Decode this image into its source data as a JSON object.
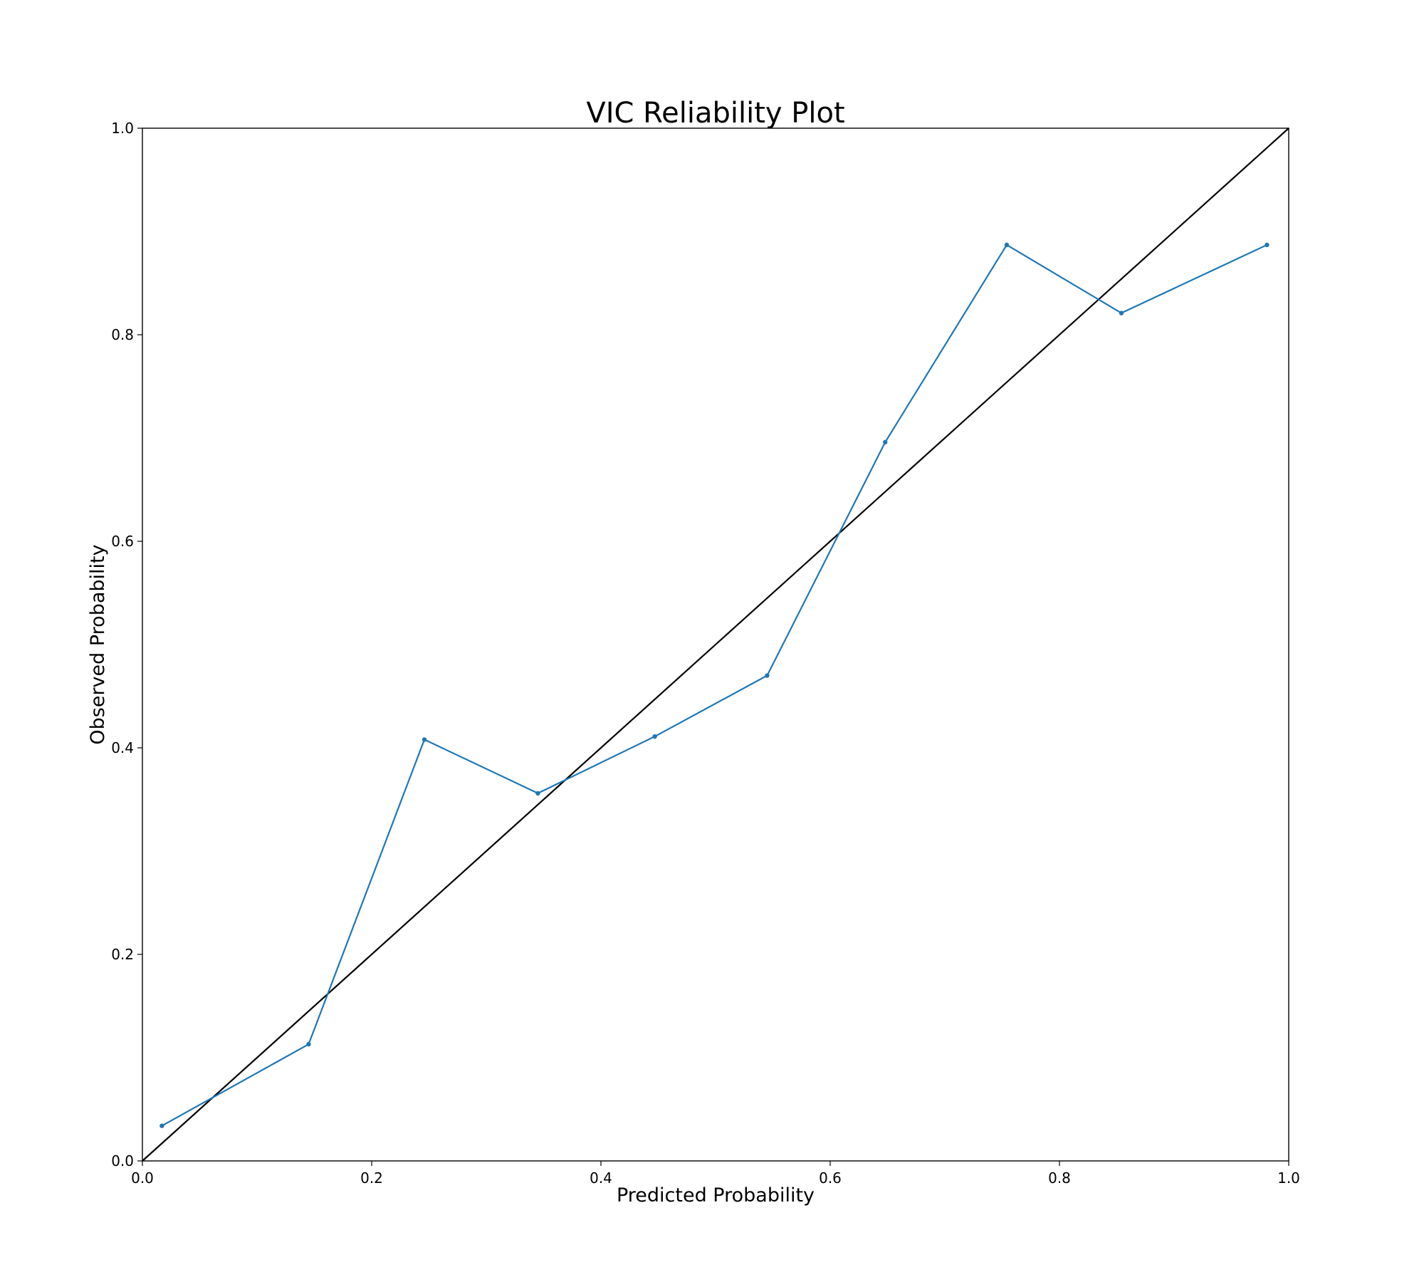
{
  "chart_data": {
    "type": "line",
    "title": "VIC Reliability Plot",
    "xlabel": "Predicted Probability",
    "ylabel": "Observed Probability",
    "xlim": [
      0.0,
      1.0
    ],
    "ylim": [
      0.0,
      1.0
    ],
    "x_ticks": [
      "0.0",
      "0.2",
      "0.4",
      "0.6",
      "0.8",
      "1.0"
    ],
    "y_ticks": [
      "0.0",
      "0.2",
      "0.4",
      "0.6",
      "0.8",
      "1.0"
    ],
    "grid": false,
    "legend": "none",
    "series": [
      {
        "color": "#1f77b4",
        "marker": "dot",
        "x": [
          0.017,
          0.145,
          0.246,
          0.345,
          0.447,
          0.545,
          0.648,
          0.754,
          0.854,
          0.981
        ],
        "y": [
          0.034,
          0.113,
          0.408,
          0.356,
          0.411,
          0.47,
          0.696,
          0.887,
          0.821,
          0.887
        ]
      },
      {
        "color": "#000000",
        "marker": "none",
        "x": [
          0.0,
          1.0
        ],
        "y": [
          0.0,
          1.0
        ]
      }
    ]
  }
}
